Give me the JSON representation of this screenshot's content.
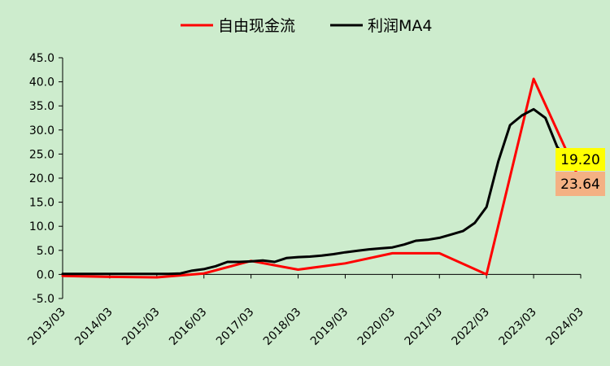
{
  "chart_data": {
    "type": "line",
    "x": [
      "2013/03",
      "2013/06",
      "2013/09",
      "2013/12",
      "2014/03",
      "2014/06",
      "2014/09",
      "2014/12",
      "2015/03",
      "2015/06",
      "2015/09",
      "2015/12",
      "2016/03",
      "2016/06",
      "2016/09",
      "2016/12",
      "2017/03",
      "2017/06",
      "2017/09",
      "2017/12",
      "2018/03",
      "2018/06",
      "2018/09",
      "2018/12",
      "2019/03",
      "2019/06",
      "2019/09",
      "2019/12",
      "2020/03",
      "2020/06",
      "2020/09",
      "2020/12",
      "2021/03",
      "2021/06",
      "2021/09",
      "2021/12",
      "2022/03",
      "2022/06",
      "2022/09",
      "2022/12",
      "2023/03",
      "2023/06",
      "2023/09",
      "2023/12",
      "2024/03"
    ],
    "x_tick_labels": [
      "2013/03",
      "2014/03",
      "2015/03",
      "2016/03",
      "2017/03",
      "2018/03",
      "2019/03",
      "2020/03",
      "2021/03",
      "2022/03",
      "2023/03",
      "2024/03"
    ],
    "ylim": [
      -5,
      45
    ],
    "y_tick_labels": [
      "-5.0",
      "0.0",
      "5.0",
      "10.0",
      "15.0",
      "20.0",
      "25.0",
      "30.0",
      "35.0",
      "40.0",
      "45.0"
    ],
    "legend_position": "top",
    "series": [
      {
        "name": "自由现金流",
        "color": "#ff0000",
        "points": [
          [
            "2013/03",
            -0.3
          ],
          [
            "2014/03",
            -0.5
          ],
          [
            "2015/03",
            -0.6
          ],
          [
            "2016/03",
            0.2
          ],
          [
            "2017/03",
            2.8
          ],
          [
            "2018/03",
            1.0
          ],
          [
            "2019/03",
            2.3
          ],
          [
            "2020/03",
            4.4
          ],
          [
            "2021/03",
            4.4
          ],
          [
            "2022/03",
            0.0
          ],
          [
            "2023/03",
            40.6
          ],
          [
            "2024/03",
            19.2
          ]
        ]
      },
      {
        "name": "利润MA4",
        "color": "#000000",
        "points": [
          [
            "2013/03",
            0.1
          ],
          [
            "2013/06",
            0.1
          ],
          [
            "2013/09",
            0.1
          ],
          [
            "2013/12",
            0.1
          ],
          [
            "2014/03",
            0.1
          ],
          [
            "2014/06",
            0.1
          ],
          [
            "2014/09",
            0.1
          ],
          [
            "2014/12",
            0.1
          ],
          [
            "2015/03",
            0.1
          ],
          [
            "2015/06",
            0.1
          ],
          [
            "2015/09",
            0.2
          ],
          [
            "2015/12",
            0.8
          ],
          [
            "2016/03",
            1.1
          ],
          [
            "2016/06",
            1.7
          ],
          [
            "2016/09",
            2.6
          ],
          [
            "2016/12",
            2.6
          ],
          [
            "2017/03",
            2.7
          ],
          [
            "2017/06",
            2.9
          ],
          [
            "2017/09",
            2.6
          ],
          [
            "2017/12",
            3.4
          ],
          [
            "2018/03",
            3.6
          ],
          [
            "2018/06",
            3.7
          ],
          [
            "2018/09",
            3.9
          ],
          [
            "2018/12",
            4.2
          ],
          [
            "2019/03",
            4.6
          ],
          [
            "2019/06",
            4.9
          ],
          [
            "2019/09",
            5.2
          ],
          [
            "2019/12",
            5.4
          ],
          [
            "2020/03",
            5.6
          ],
          [
            "2020/06",
            6.2
          ],
          [
            "2020/09",
            7.0
          ],
          [
            "2020/12",
            7.2
          ],
          [
            "2021/03",
            7.6
          ],
          [
            "2021/06",
            8.3
          ],
          [
            "2021/09",
            9.0
          ],
          [
            "2021/12",
            10.7
          ],
          [
            "2022/03",
            14.0
          ],
          [
            "2022/06",
            23.5
          ],
          [
            "2022/09",
            31.0
          ],
          [
            "2022/12",
            33.0
          ],
          [
            "2023/03",
            34.3
          ],
          [
            "2023/06",
            32.5
          ],
          [
            "2023/09",
            26.5
          ],
          [
            "2023/12",
            23.64
          ]
        ]
      }
    ],
    "callouts": [
      {
        "text": "19.20",
        "fill": "#ffff00"
      },
      {
        "text": "23.64",
        "fill": "#f4b183"
      }
    ]
  }
}
